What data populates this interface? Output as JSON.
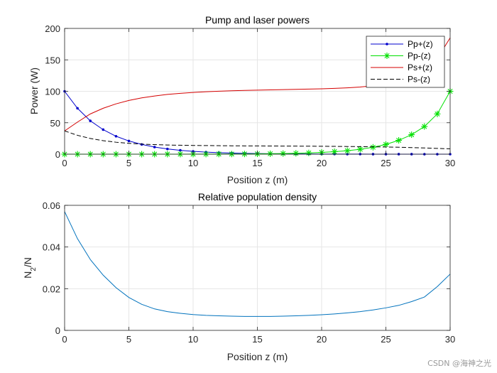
{
  "watermark": "CSDN @海神之光",
  "chart_data": [
    {
      "type": "line",
      "title": "Pump and laser powers",
      "xlabel": "Position z (m)",
      "ylabel": "Power (W)",
      "xlim": [
        0,
        30
      ],
      "ylim": [
        0,
        200
      ],
      "xticks": [
        0,
        5,
        10,
        15,
        20,
        25,
        30
      ],
      "yticks": [
        0,
        50,
        100,
        150,
        200
      ],
      "grid": true,
      "legend": "top-right",
      "x": [
        0,
        1,
        2,
        3,
        4,
        5,
        6,
        7,
        8,
        9,
        10,
        11,
        12,
        13,
        14,
        15,
        16,
        17,
        18,
        19,
        20,
        21,
        22,
        23,
        24,
        25,
        26,
        27,
        28,
        29,
        30
      ],
      "series": [
        {
          "name": "Pp+(z)",
          "color": "#0000cc",
          "marker": "dot",
          "style": "solid",
          "values": [
            100,
            73,
            53,
            39,
            28.5,
            21,
            15.5,
            11.3,
            8.3,
            6.1,
            4.5,
            3.3,
            2.4,
            1.8,
            1.3,
            1,
            0.7,
            0.5,
            0.4,
            0.3,
            0.2,
            0.15,
            0.1,
            0.08,
            0.06,
            0.04,
            0.03,
            0.02,
            0.01,
            0.01,
            0
          ]
        },
        {
          "name": "Pp-(z)",
          "color": "#00e000",
          "marker": "star",
          "style": "solid",
          "values": [
            0,
            0,
            0,
            0,
            0,
            0.01,
            0.02,
            0.03,
            0.05,
            0.07,
            0.1,
            0.13,
            0.18,
            0.25,
            0.35,
            0.5,
            0.7,
            1,
            1.4,
            2,
            2.8,
            4,
            5.5,
            7.8,
            11,
            15.5,
            22,
            31,
            44,
            64,
            100
          ]
        },
        {
          "name": "Ps+(z)",
          "color": "#d40000",
          "marker": "none",
          "style": "solid",
          "values": [
            37,
            51,
            64,
            73,
            80,
            85.5,
            89.5,
            92.5,
            95,
            96.8,
            98.2,
            99.3,
            100.1,
            100.8,
            101.4,
            101.9,
            102.3,
            102.7,
            103.1,
            103.5,
            104,
            104.6,
            105.5,
            106.8,
            108.8,
            111.5,
            115.5,
            122,
            133,
            152,
            185
          ]
        },
        {
          "name": "Ps-(z)",
          "color": "#000000",
          "marker": "none",
          "style": "dashed",
          "values": [
            37,
            30,
            25,
            21.5,
            19,
            17.3,
            16,
            15.2,
            14.6,
            14.2,
            13.9,
            13.7,
            13.5,
            13.35,
            13.2,
            13.1,
            13,
            12.9,
            12.8,
            12.7,
            12.55,
            12.4,
            12.2,
            12,
            11.7,
            11.4,
            11,
            10.5,
            9.9,
            9.2,
            8.5
          ]
        }
      ]
    },
    {
      "type": "line",
      "title": "Relative population density",
      "xlabel": "Position z (m)",
      "ylabel": "N2/N",
      "xlim": [
        0,
        30
      ],
      "ylim": [
        0,
        0.06
      ],
      "xticks": [
        0,
        5,
        10,
        15,
        20,
        25,
        30
      ],
      "yticks": [
        0,
        0.02,
        0.04,
        0.06
      ],
      "ytick_labels": [
        "0",
        "0.02",
        "0.04",
        "0.06"
      ],
      "grid": true,
      "x": [
        0,
        1,
        2,
        3,
        4,
        5,
        6,
        7,
        8,
        9,
        10,
        11,
        12,
        13,
        14,
        15,
        16,
        17,
        18,
        19,
        20,
        21,
        22,
        23,
        24,
        25,
        26,
        27,
        28,
        29,
        30
      ],
      "series": [
        {
          "color": "#0072bd",
          "style": "solid",
          "values": [
            0.057,
            0.044,
            0.034,
            0.0265,
            0.0205,
            0.0158,
            0.0125,
            0.0103,
            0.009,
            0.0082,
            0.0076,
            0.0072,
            0.007,
            0.0068,
            0.0067,
            0.0067,
            0.0067,
            0.0068,
            0.007,
            0.0072,
            0.0075,
            0.0079,
            0.0084,
            0.009,
            0.0098,
            0.0108,
            0.012,
            0.0138,
            0.016,
            0.021,
            0.027
          ]
        }
      ]
    }
  ]
}
